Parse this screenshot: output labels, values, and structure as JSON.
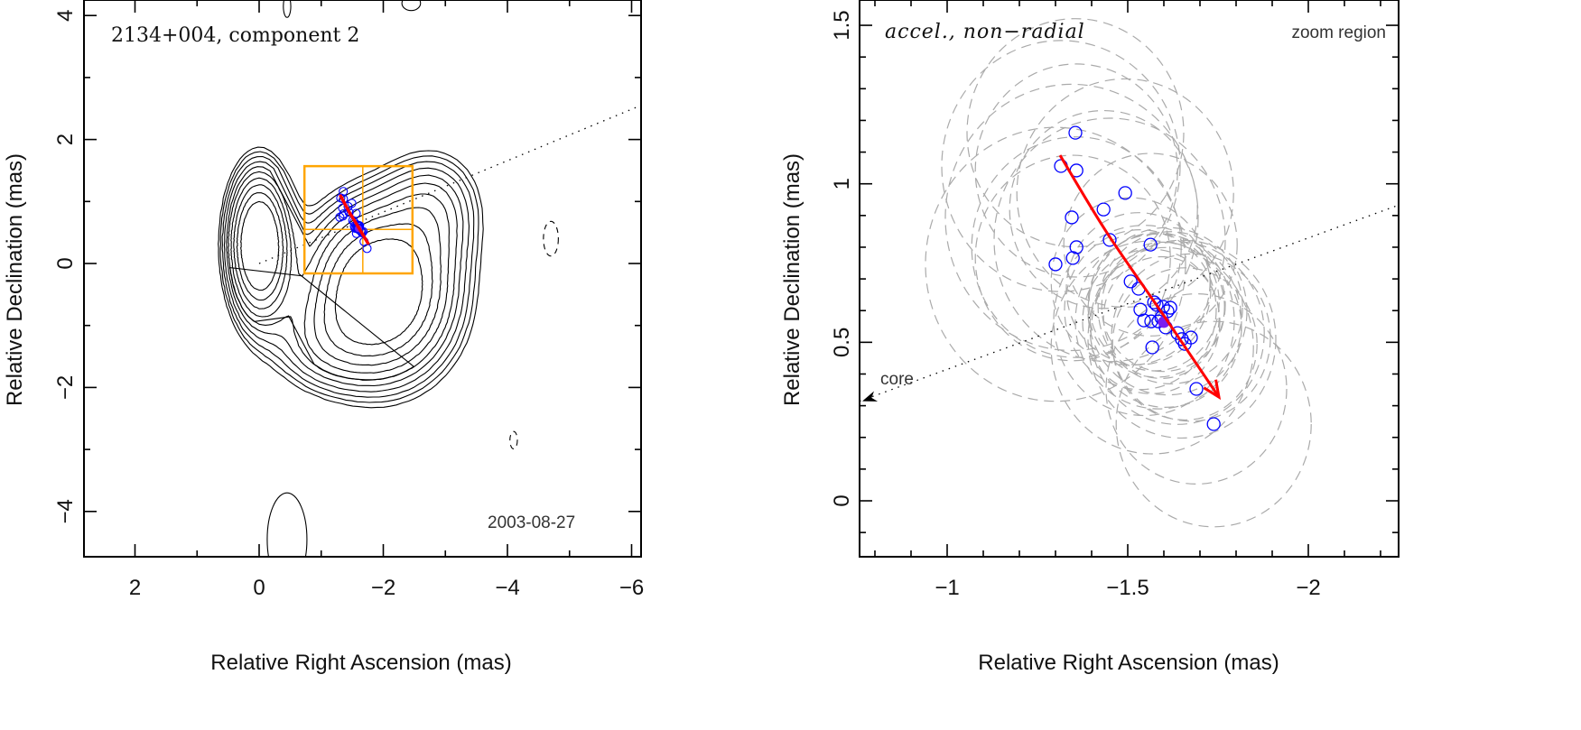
{
  "chart_data": [
    {
      "type": "contour",
      "panel": "left",
      "title": "2134+004, component 2",
      "annotation": "2003-08-27",
      "xlabel": "Relative Right Ascension (mas)",
      "ylabel": "Relative Declination (mas)",
      "xlim": [
        2.82,
        -6.15
      ],
      "ylim": [
        -4.73,
        4.25
      ],
      "xticks": [
        {
          "v": 2,
          "label": "2"
        },
        {
          "v": 0,
          "label": "0"
        },
        {
          "v": -2,
          "label": "−2"
        },
        {
          "v": -4,
          "label": "−4"
        },
        {
          "v": -6,
          "label": "−6"
        }
      ],
      "yticks": [
        {
          "v": 4,
          "label": "4"
        },
        {
          "v": 2,
          "label": "2"
        },
        {
          "v": 0,
          "label": "0"
        },
        {
          "v": -2,
          "label": "−2"
        },
        {
          "v": -4,
          "label": "−4"
        }
      ],
      "contour_sources": [
        {
          "ra": 0.0,
          "dec": 0.3,
          "sra": 0.3,
          "sdec": 0.72,
          "amp": 1.0
        },
        {
          "ra": -1.95,
          "dec": -0.45,
          "sra": 0.72,
          "sdec": 0.85,
          "amp": 0.95
        },
        {
          "ra": -2.8,
          "dec": 0.9,
          "sra": 0.5,
          "sdec": 0.6,
          "amp": 0.25
        },
        {
          "ra": -1.0,
          "dec": -1.3,
          "sra": 0.6,
          "sdec": 0.5,
          "amp": 0.18
        }
      ],
      "contour_levels": [
        0.09,
        0.112,
        0.139,
        0.173,
        0.215,
        0.267,
        0.332,
        0.412,
        0.512,
        0.637
      ],
      "extra_contours": [
        {
          "ra": -0.45,
          "dec": 4.15,
          "rra": 0.06,
          "rdec": 0.18,
          "dashed": false
        },
        {
          "ra": -2.45,
          "dec": 4.2,
          "rra": 0.15,
          "rdec": 0.12,
          "dashed": false
        },
        {
          "ra": -4.7,
          "dec": 0.4,
          "rra": 0.12,
          "rdec": 0.28,
          "dashed": true
        },
        {
          "ra": -4.1,
          "dec": -2.85,
          "rra": 0.06,
          "rdec": 0.14,
          "dashed": true
        },
        {
          "ra": -0.45,
          "dec": -4.45,
          "rra": 0.32,
          "rdec": 0.75,
          "dashed": false
        }
      ],
      "zoom_box": {
        "ra": [
          -0.73,
          -2.47
        ],
        "dec": [
          -0.16,
          1.57
        ],
        "cross": [
          -1.67,
          0.55
        ],
        "color": "#ffa500"
      },
      "core_direction": {
        "from": [
          0,
          0
        ],
        "to": [
          -6.15,
          2.55
        ]
      }
    },
    {
      "type": "scatter",
      "panel": "right",
      "title": "accel., non−radial",
      "annotation": "zoom region",
      "core_label": "core",
      "xlabel": "Relative Right Ascension (mas)",
      "ylabel": "Relative Declination (mas)",
      "xlim": [
        -0.7575,
        -2.25
      ],
      "ylim": [
        -0.176,
        1.58
      ],
      "xticks": [
        {
          "v": -1,
          "label": "−1"
        },
        {
          "v": -1.5,
          "label": "−1.5"
        },
        {
          "v": -2,
          "label": "−2"
        }
      ],
      "yticks": [
        {
          "v": 0,
          "label": "0"
        },
        {
          "v": 0.5,
          "label": "0.5"
        },
        {
          "v": 1,
          "label": "1"
        },
        {
          "v": 1.5,
          "label": "1.5"
        }
      ],
      "point_color": "#0000ff",
      "mean_point_color": "#7a1ff0",
      "ellipse_color": "#aaaaaa",
      "trajectory_color": "#ff0000",
      "points_ra_dec_size": [
        [
          -1.355,
          1.161,
          0.3
        ],
        [
          -1.315,
          1.056,
          0.33
        ],
        [
          -1.358,
          1.042,
          0.28
        ],
        [
          -1.493,
          0.971,
          0.3
        ],
        [
          -1.433,
          0.919,
          0.26
        ],
        [
          -1.345,
          0.894,
          0.35
        ],
        [
          -1.45,
          0.823,
          0.32
        ],
        [
          -1.563,
          0.808,
          0.24
        ],
        [
          -1.358,
          0.8,
          0.29
        ],
        [
          -1.348,
          0.766,
          0.27
        ],
        [
          -1.3,
          0.746,
          0.36
        ],
        [
          -1.508,
          0.692,
          0.22
        ],
        [
          -1.53,
          0.669,
          0.2
        ],
        [
          -1.573,
          0.626,
          0.18
        ],
        [
          -1.535,
          0.603,
          0.21
        ],
        [
          -1.58,
          0.618,
          0.19
        ],
        [
          -1.598,
          0.612,
          0.17
        ],
        [
          -1.61,
          0.598,
          0.22
        ],
        [
          -1.593,
          0.578,
          0.16
        ],
        [
          -1.618,
          0.609,
          0.2
        ],
        [
          -1.585,
          0.566,
          0.23
        ],
        [
          -1.545,
          0.569,
          0.25
        ],
        [
          -1.565,
          0.566,
          0.19
        ],
        [
          -1.605,
          0.547,
          0.21
        ],
        [
          -1.638,
          0.529,
          0.24
        ],
        [
          -1.65,
          0.51,
          0.26
        ],
        [
          -1.675,
          0.515,
          0.22
        ],
        [
          -1.658,
          0.495,
          0.2
        ],
        [
          -1.568,
          0.484,
          0.28
        ],
        [
          -1.69,
          0.353,
          0.25
        ],
        [
          -1.738,
          0.242,
          0.27
        ]
      ],
      "mean_point": [
        -1.6,
        0.564
      ],
      "trajectory": [
        [
          -1.3125,
          1.09
        ],
        [
          -1.44,
          0.85
        ],
        [
          -1.6,
          0.584
        ],
        [
          -1.7525,
          0.327
        ]
      ],
      "core_direction": {
        "from": [
          0,
          0
        ],
        "to": [
          -6.15,
          2.55
        ]
      }
    }
  ]
}
